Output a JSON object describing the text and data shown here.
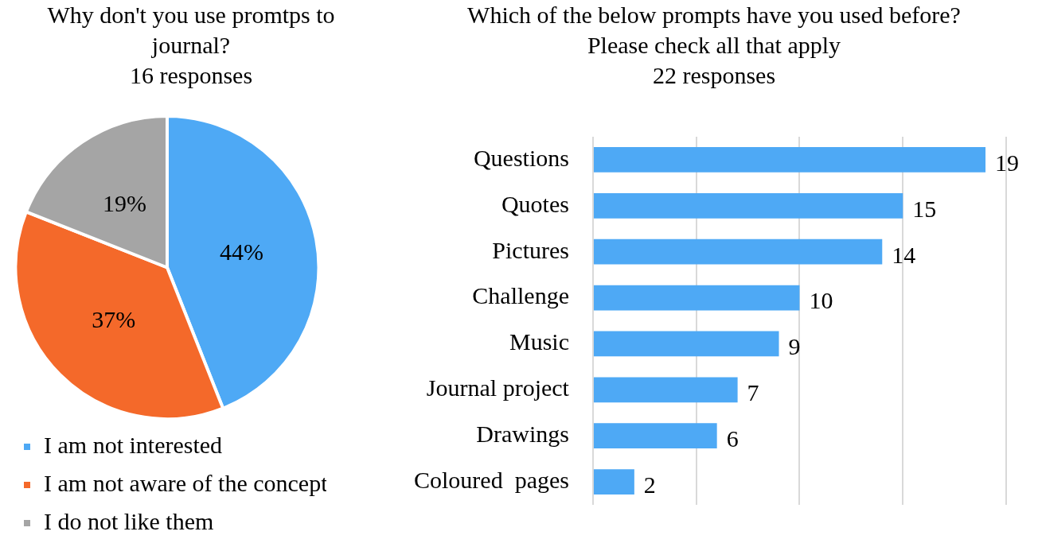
{
  "chart_data": [
    {
      "type": "pie",
      "title": "Why don't you use promtps to journal?",
      "subtitle": "16 responses",
      "categories": [
        "I am not interested",
        "I am not aware of the concept",
        "I do not like them"
      ],
      "values": [
        44,
        37,
        19
      ],
      "colors": [
        "#4ea9f5",
        "#f4692a",
        "#a5a5a5"
      ],
      "value_labels": [
        "44%",
        "37%",
        "19%"
      ],
      "legend": "bottom left"
    },
    {
      "type": "bar",
      "orientation": "horizontal",
      "title": "Which of the below prompts have you used before? Please check all that apply",
      "subtitle": "22 responses",
      "categories": [
        "Questions",
        "Quotes",
        "Pictures",
        "Challenge",
        "Music",
        "Journal project",
        "Drawings",
        "Coloured  pages"
      ],
      "values": [
        19,
        15,
        14,
        10,
        9,
        7,
        6,
        2
      ],
      "color": "#4ea9f5",
      "xlim": [
        0,
        20
      ],
      "xticks": [
        {
          "value": 0,
          "label": null
        },
        {
          "value": 5,
          "label": null
        },
        {
          "value": 10,
          "label": null
        },
        {
          "value": 15,
          "label": null
        },
        {
          "value": 20,
          "label": null
        }
      ],
      "grid": "x",
      "tick_labels": "y",
      "data_labels": true
    }
  ]
}
